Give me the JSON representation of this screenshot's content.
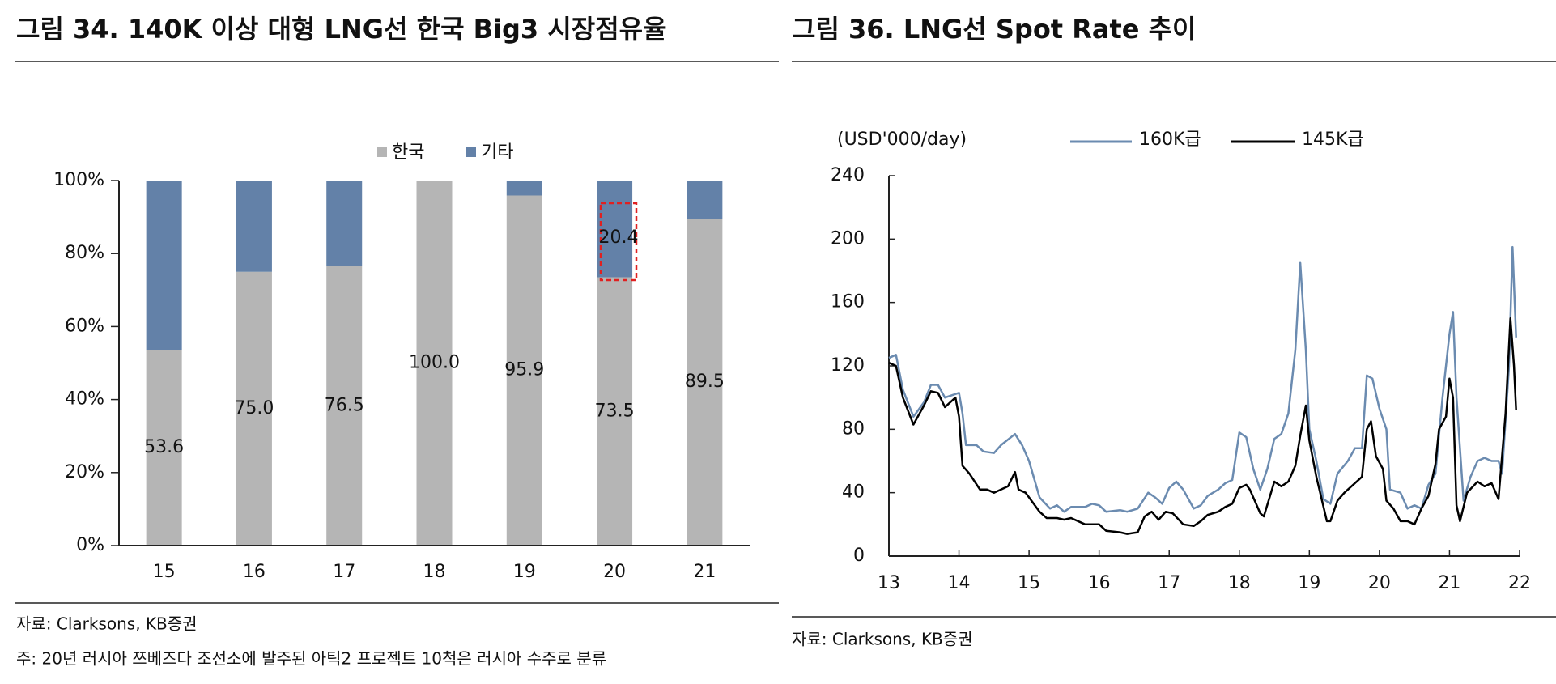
{
  "chart_data": [
    {
      "type": "stacked-bar",
      "title": "그림 34. 140K 이상 대형 LNG선 한국 Big3 시장점유율",
      "categories": [
        "15",
        "16",
        "17",
        "18",
        "19",
        "20",
        "21"
      ],
      "series": [
        {
          "name": "한국",
          "color": "#b5b5b5",
          "values": [
            53.6,
            75.0,
            76.5,
            100.0,
            95.9,
            73.5,
            89.5
          ],
          "value_labels": [
            "53.6",
            "75.0",
            "76.5",
            "100.0",
            "95.9",
            "73.5",
            "89.5"
          ]
        },
        {
          "name": "기타",
          "color": "#6381a8",
          "values": [
            46.4,
            25.0,
            23.5,
            0,
            4.1,
            26.5,
            10.5
          ]
        }
      ],
      "annotation": "20.4",
      "ylim": [
        0,
        100
      ],
      "yticks": [
        {
          "value": 0,
          "label": "0%"
        },
        {
          "value": 20,
          "label": "20%"
        },
        {
          "value": 40,
          "label": "40%"
        },
        {
          "value": 60,
          "label": "60%"
        },
        {
          "value": 80,
          "label": "80%"
        },
        {
          "value": 100,
          "label": "100%"
        }
      ],
      "source": "자료: Clarksons, KB증권",
      "note": "주: 20년 러시아 쯔베즈다 조선소에 발주된 아틱2 프로젝트 10척은 러시아 수주로 분류"
    },
    {
      "type": "line",
      "title": "그림 36. LNG선 Spot Rate 추이",
      "y_label": "(USD'000/day)",
      "series": [
        {
          "name": "160K급",
          "color": "#6b8bb0",
          "x": [
            13.0,
            13.1,
            13.2,
            13.35,
            13.5,
            13.6,
            13.7,
            13.8,
            14.0,
            14.05,
            14.1,
            14.25,
            14.35,
            14.5,
            14.6,
            14.8,
            14.9,
            15.0,
            15.15,
            15.3,
            15.4,
            15.5,
            15.6,
            15.8,
            15.9,
            16.0,
            16.1,
            16.3,
            16.4,
            16.55,
            16.7,
            16.8,
            16.9,
            17.0,
            17.1,
            17.2,
            17.35,
            17.45,
            17.55,
            17.7,
            17.8,
            17.9,
            18.0,
            18.1,
            18.2,
            18.3,
            18.4,
            18.5,
            18.6,
            18.7,
            18.8,
            18.87,
            18.95,
            19.0,
            19.1,
            19.2,
            19.3,
            19.4,
            19.55,
            19.65,
            19.75,
            19.82,
            19.9,
            20.0,
            20.1,
            20.15,
            20.3,
            20.4,
            20.5,
            20.6,
            20.7,
            20.8,
            20.9,
            21.0,
            21.05,
            21.1,
            21.2,
            21.3,
            21.4,
            21.5,
            21.6,
            21.7,
            21.75,
            21.85,
            21.9,
            21.95
          ],
          "values": [
            125,
            127,
            105,
            88,
            97,
            108,
            108,
            100,
            103,
            90,
            70,
            70,
            66,
            65,
            70,
            77,
            70,
            60,
            37,
            30,
            32,
            28,
            31,
            31,
            33,
            32,
            28,
            29,
            28,
            30,
            40,
            37,
            33,
            43,
            47,
            42,
            30,
            32,
            38,
            42,
            46,
            48,
            78,
            75,
            55,
            42,
            55,
            74,
            77,
            90,
            130,
            185,
            130,
            80,
            60,
            36,
            33,
            52,
            60,
            68,
            68,
            114,
            112,
            93,
            80,
            42,
            40,
            30,
            32,
            30,
            45,
            52,
            100,
            140,
            154,
            100,
            35,
            50,
            60,
            62,
            60,
            60,
            52,
            120,
            195,
            138
          ]
        },
        {
          "name": "145K급",
          "color": "#000000",
          "x": [
            13.0,
            13.1,
            13.2,
            13.35,
            13.5,
            13.6,
            13.7,
            13.8,
            13.95,
            14.0,
            14.05,
            14.15,
            14.3,
            14.4,
            14.5,
            14.7,
            14.8,
            14.85,
            14.95,
            15.0,
            15.15,
            15.25,
            15.4,
            15.5,
            15.6,
            15.8,
            16.0,
            16.1,
            16.3,
            16.4,
            16.55,
            16.65,
            16.75,
            16.85,
            16.95,
            17.05,
            17.2,
            17.35,
            17.45,
            17.55,
            17.7,
            17.8,
            17.9,
            18.0,
            18.1,
            18.15,
            18.3,
            18.35,
            18.5,
            18.6,
            18.7,
            18.8,
            18.87,
            18.95,
            19.0,
            19.1,
            19.25,
            19.3,
            19.4,
            19.5,
            19.65,
            19.75,
            19.82,
            19.88,
            19.95,
            20.05,
            20.1,
            20.2,
            20.3,
            20.4,
            20.5,
            20.6,
            20.7,
            20.8,
            20.85,
            20.95,
            21.0,
            21.05,
            21.1,
            21.15,
            21.25,
            21.4,
            21.5,
            21.6,
            21.7,
            21.8,
            21.87,
            21.92,
            21.95
          ],
          "values": [
            122,
            120,
            100,
            83,
            95,
            104,
            103,
            94,
            100,
            88,
            57,
            52,
            42,
            42,
            40,
            44,
            53,
            42,
            40,
            37,
            28,
            24,
            24,
            23,
            24,
            20,
            20,
            16,
            15,
            14,
            15,
            25,
            28,
            23,
            28,
            27,
            20,
            19,
            22,
            26,
            28,
            31,
            33,
            43,
            45,
            42,
            27,
            25,
            47,
            44,
            47,
            57,
            76,
            95,
            73,
            50,
            22,
            22,
            35,
            40,
            46,
            50,
            80,
            85,
            63,
            55,
            35,
            30,
            22,
            22,
            20,
            30,
            38,
            58,
            80,
            88,
            112,
            100,
            32,
            22,
            40,
            47,
            44,
            46,
            36,
            90,
            150,
            120,
            92
          ]
        }
      ],
      "xlim": [
        13,
        22
      ],
      "xticks": [
        13,
        14,
        15,
        16,
        17,
        18,
        19,
        20,
        21,
        22
      ],
      "ylim": [
        0,
        240
      ],
      "yticks": [
        0,
        40,
        80,
        120,
        160,
        200,
        240
      ],
      "source": "자료: Clarksons, KB증권"
    }
  ]
}
